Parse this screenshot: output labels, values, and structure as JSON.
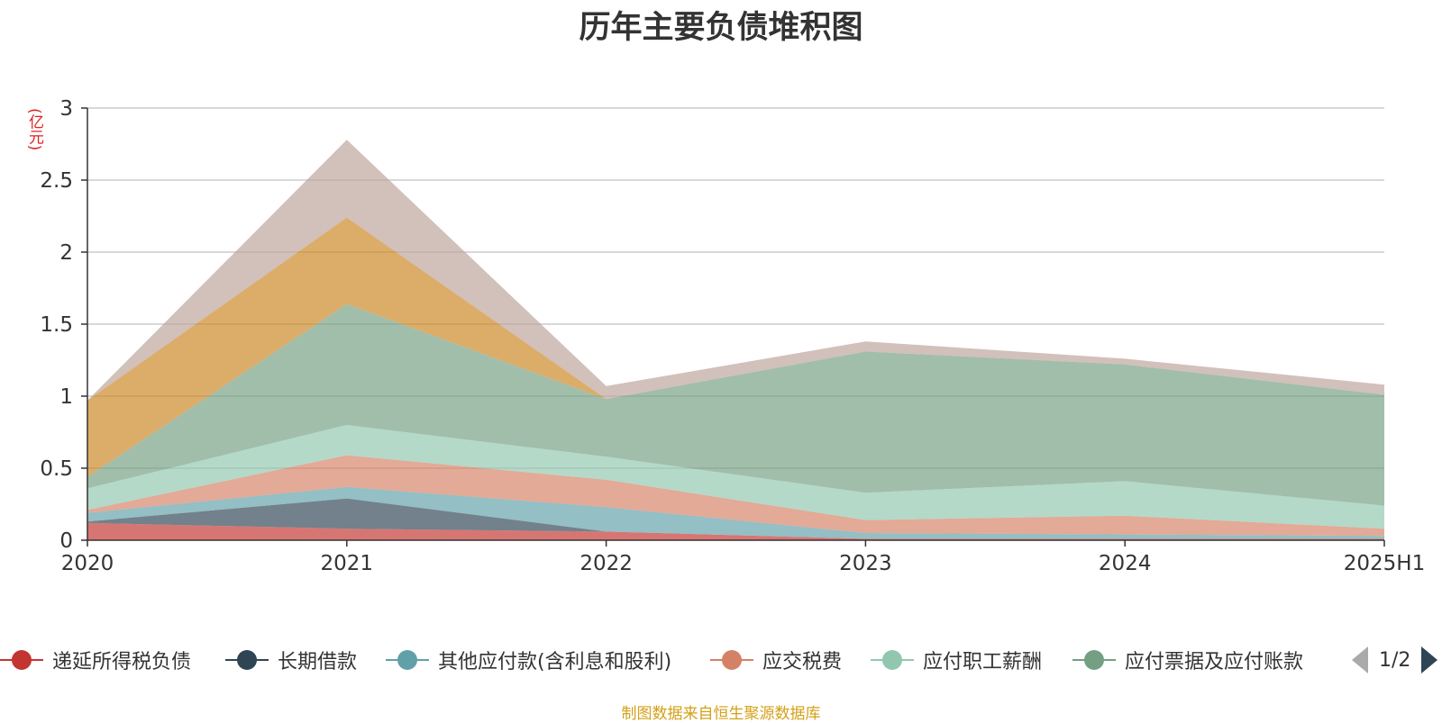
{
  "chart_data": {
    "type": "area",
    "stacked": true,
    "title": "历年主要负债堆积图",
    "unit": "(亿元)",
    "categories": [
      "2020",
      "2021",
      "2022",
      "2023",
      "2024",
      "2025H1"
    ],
    "ylim": [
      0,
      3
    ],
    "yticks": [
      "0",
      "0.5",
      "1",
      "1.5",
      "2",
      "2.5",
      "3"
    ],
    "grid": true,
    "legend_position": "bottom",
    "series": [
      {
        "name": "递延所得税负债",
        "color": "#c23531",
        "values": [
          0.12,
          0.08,
          0.06,
          0.01,
          0.01,
          0.01
        ]
      },
      {
        "name": "长期借款",
        "color": "#2f4554",
        "values": [
          0.01,
          0.21,
          0.0,
          0.0,
          0.0,
          0.0
        ]
      },
      {
        "name": "其他应付款(含利息和股利)",
        "color": "#61a0a8",
        "values": [
          0.06,
          0.08,
          0.17,
          0.04,
          0.03,
          0.02
        ]
      },
      {
        "name": "应交税费",
        "color": "#d48265",
        "values": [
          0.02,
          0.22,
          0.19,
          0.09,
          0.13,
          0.05
        ]
      },
      {
        "name": "应付职工薪酬",
        "color": "#91c7ae",
        "values": [
          0.15,
          0.21,
          0.16,
          0.19,
          0.24,
          0.16
        ]
      },
      {
        "name": "应付票据及应付账款",
        "color": "#749f83",
        "values": [
          0.08,
          0.84,
          0.4,
          0.98,
          0.81,
          0.77
        ]
      },
      {
        "name": "",
        "color": "#ca8622",
        "values": [
          0.53,
          0.6,
          0.0,
          0.0,
          0.0,
          0.0
        ]
      },
      {
        "name": "",
        "color": "#bda29a",
        "values": [
          0.0,
          0.54,
          0.09,
          0.07,
          0.04,
          0.07
        ]
      }
    ],
    "pager": "1/2",
    "source": "制图数据来自恒生聚源数据库"
  }
}
